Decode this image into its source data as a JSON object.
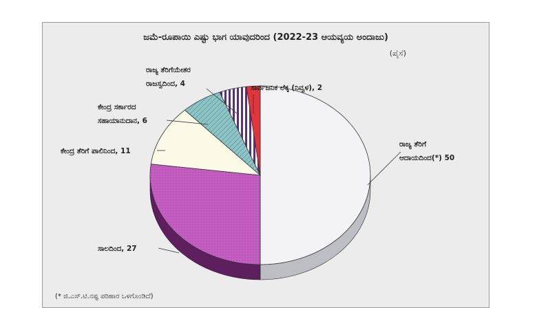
{
  "chart_data": {
    "type": "pie",
    "title": "ಜಮೆ-ರೂಪಾಯಿ ಎಷ್ಟು ಭಾಗ ಯಾವುದರಿಂದ (2022-23 ಆಯವ್ಯಯ ಅಂದಾಜು)",
    "unit": "(ಪೈಸೆ)",
    "note": "(* ಜಿ.ಎಸ್.ಟಿ.ನಷ್ಟ ಪರಿಹಾರ ಒಳಗೊಂಡಿದೆ)",
    "slices": [
      {
        "label_lines": [
          "ರಾಜ್ಯ ತೆರಿಗೆ",
          "ಆದಾಯದಿಂದ(*) 50"
        ],
        "value": 50,
        "color": "#f3f3f6"
      },
      {
        "label_lines": [
          "ಸಾಲದಿಂದ, 27"
        ],
        "value": 27,
        "color": "#c45fc1"
      },
      {
        "label_lines": [
          "ಕೇಂದ್ರ ತೆರಿಗೆ ಪಾಲಿನಿಂದ, 11"
        ],
        "value": 11,
        "color": "#fafae6"
      },
      {
        "label_lines": [
          "ಕೇಂದ್ರ ಸರ್ಕಾರದ",
          "ಸಹಾಯಾನುದಾನ, 6"
        ],
        "value": 6,
        "color": "#8fc4c6"
      },
      {
        "label_lines": [
          "ರಾಜ್ಯ ತೆರಿಗೆಯೇತರ",
          "ರಾಜಸ್ವದಿಂದ, 4"
        ],
        "value": 4,
        "color": "#5a2f7a"
      },
      {
        "label_lines": [
          "ಸಾರ್ವಜನಿಕ ಲೆಕ್ಕ (ನಿವ್ವಳ), 2"
        ],
        "value": 2,
        "color": "#e2353b"
      }
    ]
  }
}
